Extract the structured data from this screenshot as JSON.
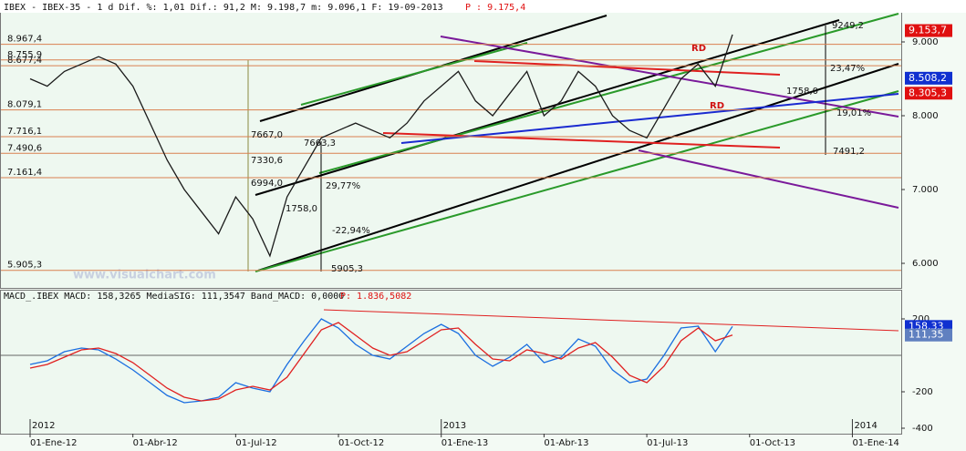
{
  "header": {
    "info": "IBEX - IBEX-35 -  1 d Dif. %: 1,01 Dif.: 91,2 M: 9.198,7 m: 9.096,1 F: 19-09-2013",
    "last": "P : 9.175,4"
  },
  "watermark": "www.visualchart.com",
  "year_labels": [
    "2012",
    "2013",
    "2014"
  ],
  "chart_data": [
    {
      "type": "line",
      "categories": [
        "01-Ene-12",
        null,
        null,
        null,
        null,
        null,
        "01-Abr-12",
        null,
        null,
        null,
        null,
        null,
        "01-Jul-12",
        null,
        null,
        null,
        null,
        null,
        "01-Oct-12",
        null,
        null,
        null,
        null,
        null,
        "01-Ene-13",
        null,
        null,
        null,
        null,
        null,
        "01-Abr-13",
        null,
        null,
        null,
        null,
        null,
        "01-Jul-13",
        null,
        null,
        null,
        null,
        null,
        "01-Oct-13",
        null,
        null,
        null,
        null,
        null,
        "01-Ene-14"
      ],
      "series": [
        {
          "color": "#1a1a1a",
          "values": [
            8500,
            8400,
            8600,
            8700,
            8800,
            8700,
            8400,
            7900,
            7400,
            7000,
            6700,
            6400,
            6900,
            6600,
            6100,
            6900,
            7300,
            7700,
            7800,
            7900,
            7800,
            7700,
            7900,
            8200,
            8400,
            8600,
            8200,
            8000,
            8300,
            8600,
            8000,
            8200,
            8600,
            8400,
            8000,
            7800,
            7700,
            8100,
            8500,
            8700,
            8400,
            9100,
            null,
            null,
            null,
            null,
            null,
            null,
            null
          ]
        }
      ],
      "ylim": [
        5667,
        9358
      ],
      "yticks": [
        {
          "value": 6000,
          "label": "6.000"
        },
        {
          "value": 7000,
          "label": "7.000"
        },
        {
          "value": 8000,
          "label": "8.000"
        },
        {
          "value": 9000,
          "label": "9.000"
        }
      ],
      "levels": [
        {
          "value": 8967.4,
          "label": "8.967,4"
        },
        {
          "value": 8755.9,
          "label": "8.755,9"
        },
        {
          "value": 8677.4,
          "label": "8.677,4"
        },
        {
          "value": 8079.1,
          "label": "8.079,1"
        },
        {
          "value": 7716.1,
          "label": "7.716,1"
        },
        {
          "value": 7490.6,
          "label": "7.490,6"
        },
        {
          "value": 7161.4,
          "label": "7.161,4"
        },
        {
          "value": 5905.3,
          "label": "5.905,3"
        }
      ],
      "price_tags": [
        {
          "value": 9153.7,
          "label": "9.153,7",
          "color": "#e01010"
        },
        {
          "value": 8508.2,
          "label": "8.508,2",
          "color": "#1030d0"
        },
        {
          "value": 8305.3,
          "label": "8.305,3",
          "color": "#e01010"
        }
      ],
      "annotations": [
        "7667,0",
        "7663,3",
        "7330,6",
        "6994,0",
        "29,77%",
        "1758,0",
        "-22,94%",
        "5905,3",
        "9249,2",
        "23,47%",
        "1758,0",
        "19,01%",
        "7491,2",
        "RD",
        "RD"
      ]
    },
    {
      "type": "line",
      "title": "MACD_.IBEX MACD: 158,3265 MediaSIG: 111,3547 Band_MACD: 0,0000",
      "subtitle": "P: 1.836,5082",
      "series": [
        {
          "color": "#1a6ee0",
          "values": [
            -50,
            -30,
            20,
            40,
            30,
            -20,
            -80,
            -150,
            -220,
            -260,
            -250,
            -230,
            -150,
            -180,
            -200,
            -50,
            80,
            200,
            150,
            60,
            0,
            -20,
            50,
            120,
            170,
            120,
            0,
            -60,
            -10,
            60,
            -40,
            -10,
            90,
            50,
            -80,
            -150,
            -130,
            0,
            150,
            160,
            20,
            158.3265,
            null,
            null,
            null,
            null,
            null,
            null,
            null
          ]
        },
        {
          "color": "#e02020",
          "values": [
            -70,
            -50,
            -10,
            30,
            40,
            10,
            -40,
            -110,
            -180,
            -230,
            -250,
            -240,
            -190,
            -170,
            -190,
            -120,
            10,
            140,
            180,
            110,
            40,
            0,
            20,
            80,
            140,
            150,
            60,
            -20,
            -30,
            30,
            10,
            -20,
            40,
            70,
            -10,
            -110,
            -150,
            -60,
            80,
            150,
            80,
            111.3547,
            null,
            null,
            null,
            null,
            null,
            null,
            null
          ]
        }
      ],
      "ylim": [
        -425,
        340
      ],
      "yticks": [
        -400,
        -200,
        200
      ],
      "price_tags": [
        {
          "value": 158.33,
          "label": "158,33",
          "color": "#1030d0"
        },
        {
          "value": 111.35,
          "label": "111,35",
          "color": "#6080c0"
        }
      ]
    }
  ]
}
